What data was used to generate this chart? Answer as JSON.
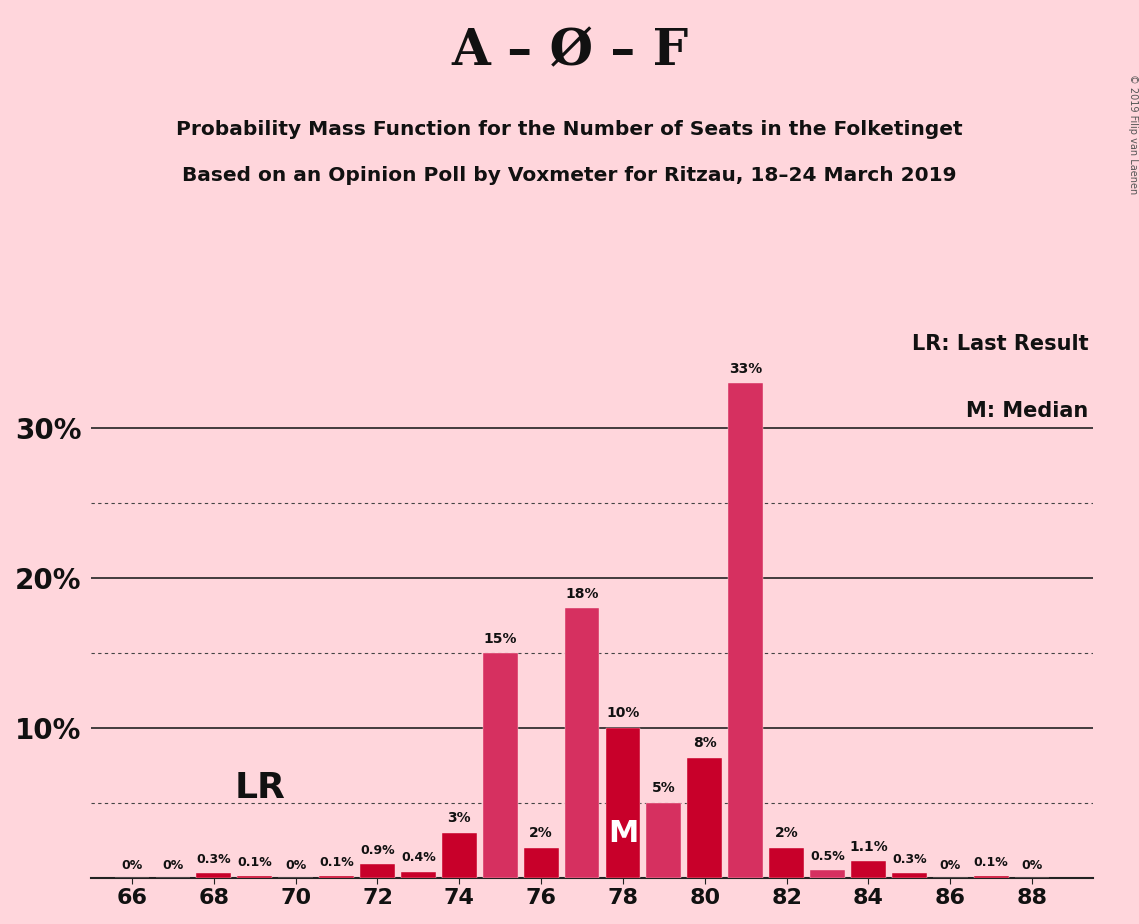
{
  "title_main": "A – Ø – F",
  "title_sub1": "Probability Mass Function for the Number of Seats in the Folketinget",
  "title_sub2": "Based on an Opinion Poll by Voxmeter for Ritzau, 18–24 March 2019",
  "copyright": "© 2019 Filip van Laenen",
  "seats": [
    66,
    67,
    68,
    69,
    70,
    71,
    72,
    73,
    74,
    75,
    76,
    77,
    78,
    79,
    80,
    81,
    82,
    83,
    84,
    85,
    86,
    87,
    88
  ],
  "values": [
    0.0,
    0.0,
    0.3,
    0.1,
    0.0,
    0.1,
    0.9,
    0.4,
    3.0,
    15.0,
    2.0,
    18.0,
    10.0,
    5.0,
    8.0,
    33.0,
    2.0,
    0.5,
    1.1,
    0.3,
    0.0,
    0.1,
    0.0
  ],
  "labels": [
    "0%",
    "0%",
    "0.3%",
    "0.1%",
    "0%",
    "0.1%",
    "0.9%",
    "0.4%",
    "3%",
    "15%",
    "2%",
    "18%",
    "10%",
    "5%",
    "8%",
    "33%",
    "2%",
    "0.5%",
    "1.1%",
    "0.3%",
    "0%",
    "0.1%",
    "0%"
  ],
  "bar_colors": [
    "#C8002A",
    "#C8002A",
    "#C8002A",
    "#C8002A",
    "#C8002A",
    "#C8002A",
    "#C8002A",
    "#C8002A",
    "#C8002A",
    "#D63060",
    "#C8002A",
    "#D63060",
    "#C8002A",
    "#D63060",
    "#C8002A",
    "#D63060",
    "#C8002A",
    "#D63060",
    "#C8002A",
    "#C8002A",
    "#C8002A",
    "#C8002A",
    "#C8002A"
  ],
  "lr_seat": 68,
  "median_seat": 78,
  "background_color": "#FFD6DC",
  "solid_yticks": [
    10,
    20,
    30
  ],
  "dotted_yticks": [
    5,
    15,
    25
  ],
  "xlim": [
    65.0,
    89.5
  ],
  "ylim": [
    0,
    37
  ],
  "figsize": [
    11.39,
    9.24
  ],
  "dpi": 100
}
